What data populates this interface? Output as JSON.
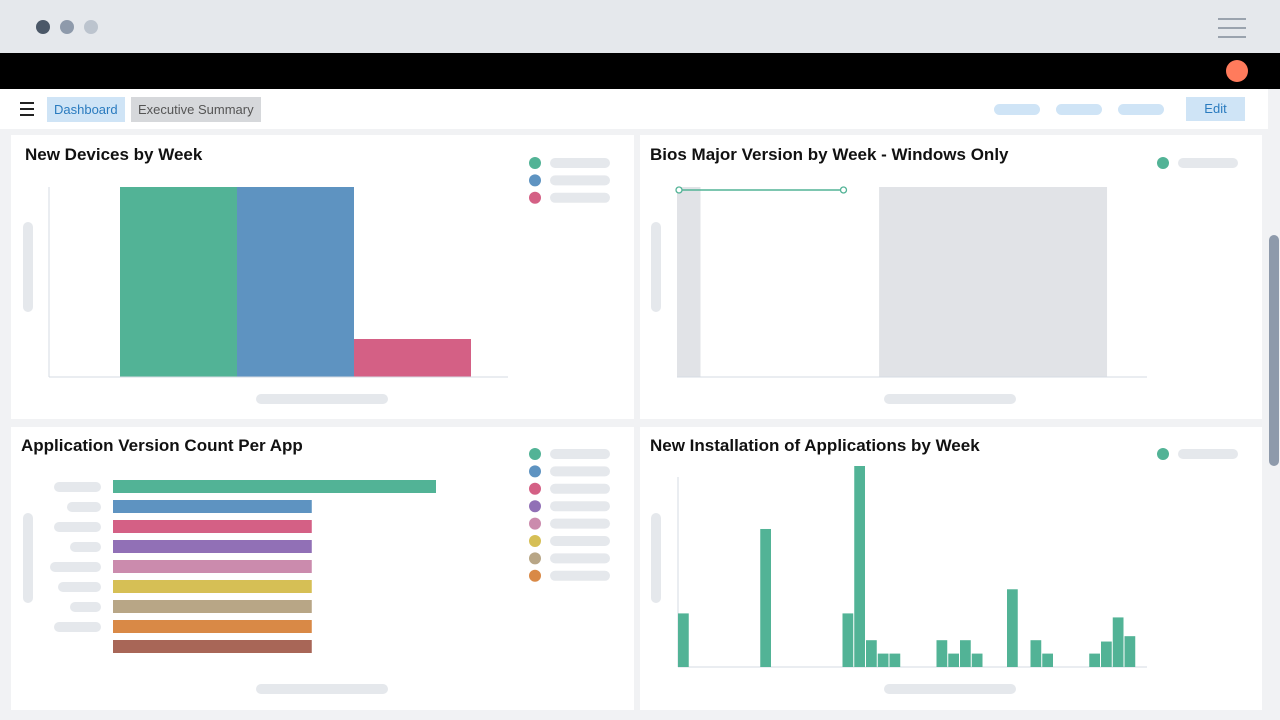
{
  "window": {
    "dots": [
      "#4b5868",
      "#8e9aab",
      "#bcc4ce"
    ],
    "avatar_color": "#ff7b5c"
  },
  "nav": {
    "tabs": [
      {
        "label": "Dashboard"
      },
      {
        "label": "Executive Summary"
      }
    ],
    "edit_label": "Edit"
  },
  "panels": {
    "p1": {
      "title": "New Devices by Week"
    },
    "p2": {
      "title": "Bios Major Version by Week - Windows Only"
    },
    "p3": {
      "title": "Application Version Count Per App"
    },
    "p4": {
      "title": "New Installation of Applications by Week"
    }
  },
  "chart_data": [
    {
      "type": "bar",
      "title": "New Devices by Week",
      "categories": [
        "",
        "",
        ""
      ],
      "values": [
        100,
        100,
        20
      ],
      "colors": [
        "#52b396",
        "#5e93c1",
        "#d46085"
      ],
      "ylim": [
        0,
        100
      ],
      "grid": false,
      "legend": "top-right"
    },
    {
      "type": "line",
      "title": "Bios Major Version by Week - Windows Only",
      "x": [
        0,
        7
      ],
      "y": [
        1,
        1
      ],
      "xlim": [
        0,
        20
      ],
      "shaded_ranges": [
        [
          0,
          1
        ],
        [
          8.6,
          18.3
        ]
      ],
      "colors": [
        "#52b396"
      ],
      "grid": false,
      "legend": "top-right"
    },
    {
      "type": "bar",
      "orientation": "horizontal",
      "title": "Application Version Count Per App",
      "values": [
        13,
        8,
        8,
        8,
        8,
        8,
        8,
        8,
        8
      ],
      "colors": [
        "#52b396",
        "#5e93c1",
        "#d46085",
        "#9170b6",
        "#cb8bad",
        "#d6bf55",
        "#b8a686",
        "#d98946",
        "#a86657"
      ],
      "legend_colors": [
        "#52b396",
        "#5e93c1",
        "#d46085",
        "#9170b6",
        "#cb8bad",
        "#d6bf55",
        "#b8a686",
        "#d98946"
      ],
      "xlim": [
        0,
        13
      ],
      "grid": false,
      "legend": "top-right"
    },
    {
      "type": "bar",
      "title": "New Installation of Applications by Week",
      "values": [
        4,
        0,
        0,
        0,
        0,
        0,
        0,
        10.3,
        0,
        0,
        0,
        0,
        0,
        0,
        4,
        15,
        2,
        1,
        1,
        0,
        0,
        0,
        2,
        1,
        2,
        1,
        0,
        0,
        5.8,
        0,
        2,
        1,
        0,
        0,
        0,
        1,
        1.9,
        3.7,
        2.3
      ],
      "colors": [
        "#52b396"
      ],
      "ylim": [
        0,
        15
      ],
      "grid": false,
      "legend": "top-right"
    }
  ]
}
